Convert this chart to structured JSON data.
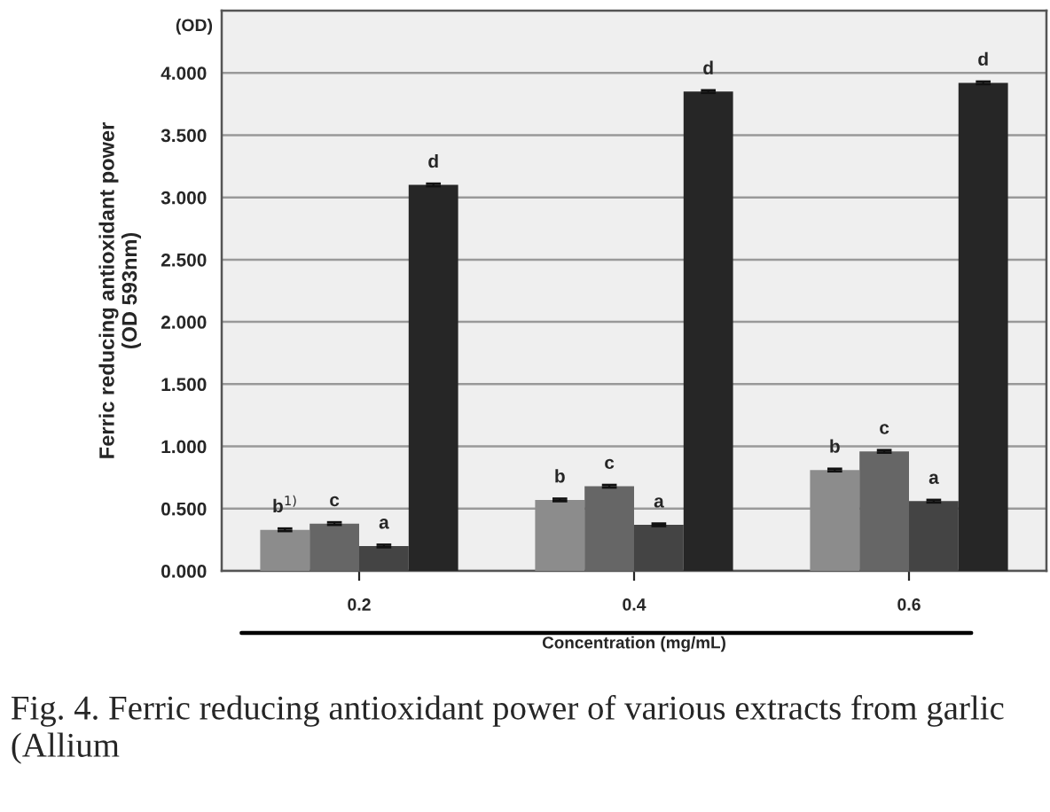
{
  "chart_data": {
    "type": "bar",
    "ylabel": "Ferric reducing antioxidant power\n(OD 593nm)",
    "xlabel": "Concentration (mg/mL)",
    "categories": [
      "0.2",
      "0.4",
      "0.6"
    ],
    "series": [
      {
        "color": "#8c8c8c",
        "values": [
          0.33,
          0.57,
          0.81
        ],
        "errors": [
          0.01,
          0.01,
          0.01
        ]
      },
      {
        "color": "#666666",
        "values": [
          0.38,
          0.68,
          0.96
        ],
        "errors": [
          0.01,
          0.01,
          0.01
        ]
      },
      {
        "color": "#444444",
        "values": [
          0.2,
          0.37,
          0.56
        ],
        "errors": [
          0.01,
          0.01,
          0.01
        ]
      },
      {
        "color": "#262626",
        "values": [
          3.1,
          3.85,
          3.92
        ],
        "errors": [
          0.01,
          0.01,
          0.01
        ]
      }
    ],
    "ylim": [
      0,
      4.5
    ],
    "yticks": [
      {
        "value": 0,
        "label": "0.000"
      },
      {
        "value": 0.5,
        "label": "0.500"
      },
      {
        "value": 1,
        "label": "1.000"
      },
      {
        "value": 1.5,
        "label": "1.500"
      },
      {
        "value": 2,
        "label": "2.000"
      },
      {
        "value": 2.5,
        "label": "2.500"
      },
      {
        "value": 3,
        "label": "3.000"
      },
      {
        "value": 3.5,
        "label": "3.500"
      },
      {
        "value": 4,
        "label": "4.000"
      }
    ],
    "grid": "y",
    "legend": false,
    "annotations": [
      "b$^{1)}$",
      "c",
      "a",
      "d",
      "b",
      "c",
      "a",
      "d",
      "b",
      "c",
      "a",
      "d",
      "(OD)",
      "Fig. 4. Ferric reducing antioxidant power of various extracts from garlic (Allium"
    ]
  }
}
